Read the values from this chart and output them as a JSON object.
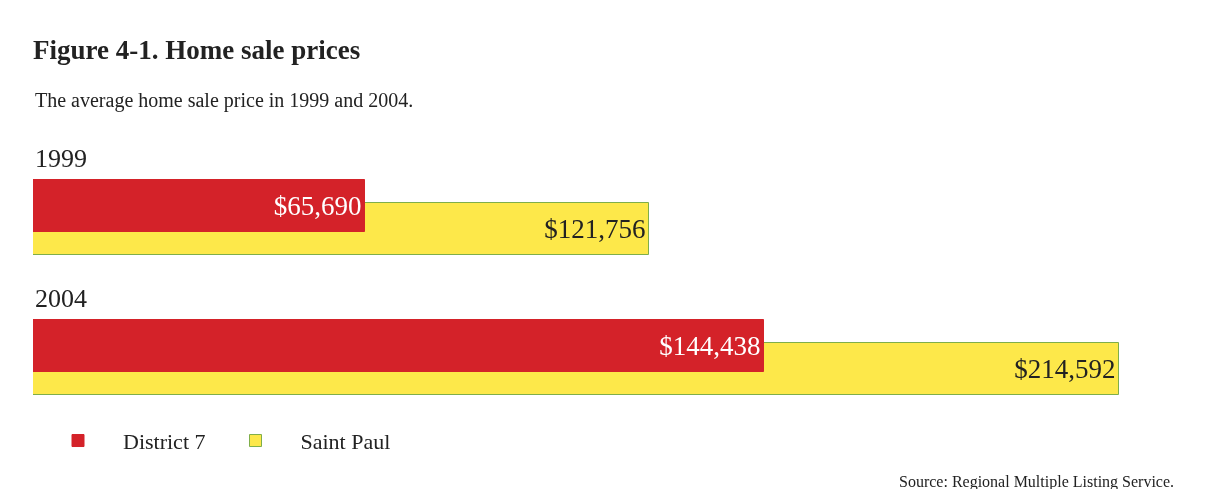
{
  "chart_data": {
    "type": "bar",
    "orientation": "horizontal",
    "title": "Figure 4-1. Home sale prices",
    "subtitle": "The average home sale price in 1999 and 2004.",
    "categories": [
      "1999",
      "2004"
    ],
    "series": [
      {
        "name": "District 7",
        "color": "#d42229",
        "values": [
          65690,
          144438
        ],
        "value_labels": [
          "$65,690",
          "$144,438"
        ]
      },
      {
        "name": "Saint Paul",
        "color": "#fde84a",
        "values": [
          121756,
          214592
        ],
        "value_labels": [
          "$121,756",
          "$214,592"
        ]
      }
    ],
    "legend": "bottom left",
    "annotations": [
      "Source: Regional Multiple Listing Service."
    ]
  }
}
